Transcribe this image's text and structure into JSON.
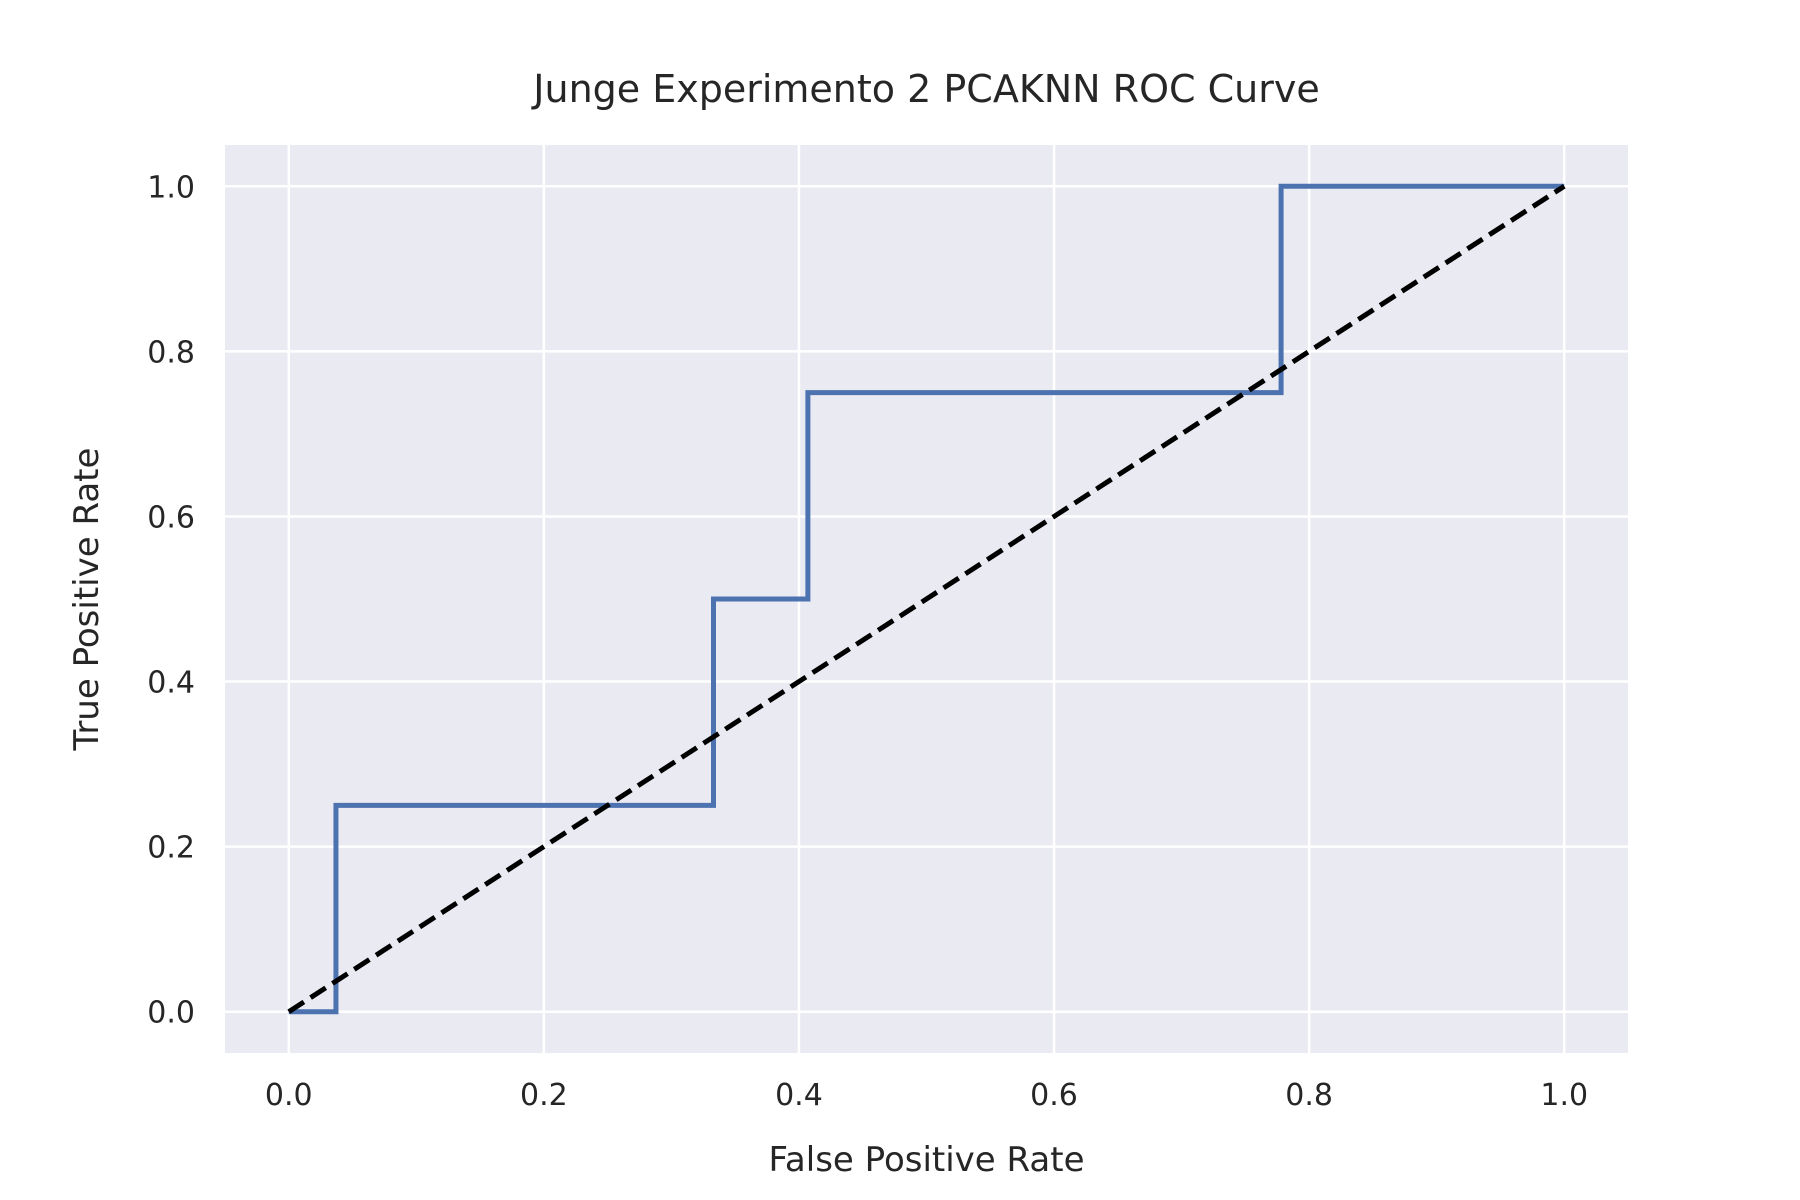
{
  "chart_data": {
    "type": "line",
    "title": "Junge Experimento 2 PCAKNN ROC Curve",
    "xlabel": "False Positive Rate",
    "ylabel": "True Positive Rate",
    "xlim": [
      -0.05,
      1.05
    ],
    "ylim": [
      -0.05,
      1.05
    ],
    "xticks": [
      0.0,
      0.2,
      0.4,
      0.6,
      0.8,
      1.0
    ],
    "yticks": [
      0.0,
      0.2,
      0.4,
      0.6,
      0.8,
      1.0
    ],
    "xtick_labels": [
      "0.0",
      "0.2",
      "0.4",
      "0.6",
      "0.8",
      "1.0"
    ],
    "ytick_labels": [
      "0.0",
      "0.2",
      "0.4",
      "0.6",
      "0.8",
      "1.0"
    ],
    "grid": true,
    "legend": "none",
    "background_color": "#EAEAF2",
    "grid_color": "#FFFFFF",
    "series": [
      {
        "style": "solid",
        "color": "#4C72B0",
        "x": [
          0.0,
          0.037,
          0.037,
          0.333,
          0.333,
          0.407,
          0.407,
          0.778,
          0.778,
          1.0
        ],
        "y": [
          0.0,
          0.0,
          0.25,
          0.25,
          0.5,
          0.5,
          0.75,
          0.75,
          1.0,
          1.0
        ]
      },
      {
        "style": "dashed",
        "color": "#000000",
        "x": [
          0.0,
          1.0
        ],
        "y": [
          0.0,
          1.0
        ]
      }
    ]
  }
}
